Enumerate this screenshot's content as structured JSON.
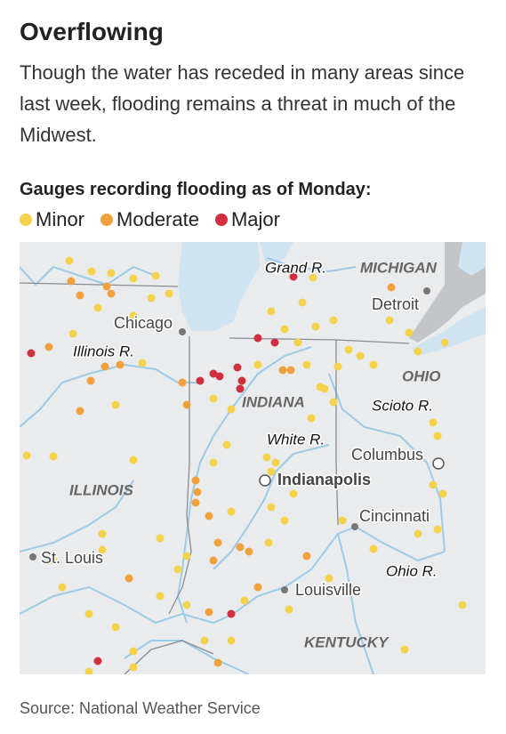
{
  "header": {
    "title": "Overflowing",
    "subtitle": "Though the water has receded in many areas since last week, flooding remains a threat in much of the Midwest."
  },
  "legend": {
    "title": "Gauges recording flooding as of Monday:",
    "items": [
      {
        "label": "Minor",
        "color": "#f5d24b"
      },
      {
        "label": "Moderate",
        "color": "#f0a13c"
      },
      {
        "label": "Major",
        "color": "#cf2f3e"
      }
    ]
  },
  "map": {
    "labels": [
      "Grand R.",
      "MICHIGAN",
      "Detroit",
      "Chicago",
      "Illinois R.",
      "OHIO",
      "INDIANA",
      "Scioto R.",
      "White R.",
      "Columbus",
      "ILLINOIS",
      "Indianapolis",
      "Cincinnati",
      "St. Louis",
      "Ohio R.",
      "Louisville",
      "KENTUCKY"
    ]
  },
  "source": "Source: National Weather Service"
}
